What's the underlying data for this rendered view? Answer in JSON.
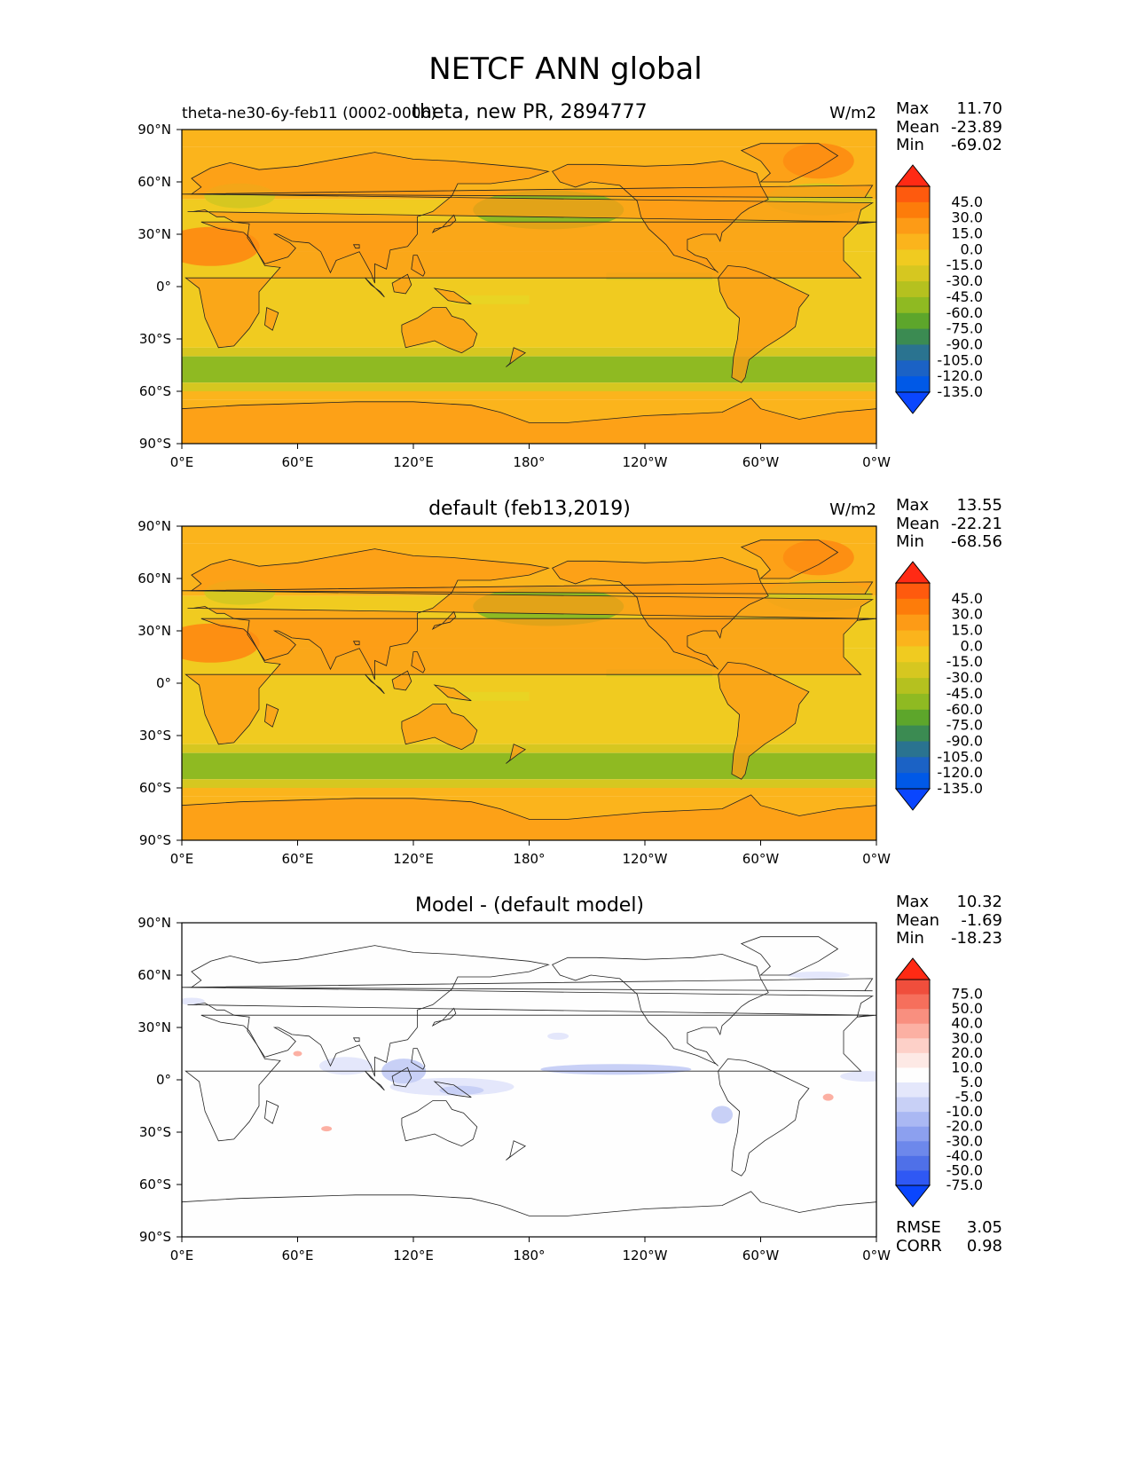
{
  "figure": {
    "title": "NETCF ANN global"
  },
  "axes": {
    "yticks": [
      "90°N",
      "60°N",
      "30°N",
      "0°",
      "30°S",
      "60°S",
      "90°S"
    ],
    "xticks": [
      "0°E",
      "60°E",
      "120°E",
      "180°",
      "120°W",
      "60°W",
      "0°W"
    ]
  },
  "panels": [
    {
      "title": "theta, new PR, 2894777",
      "left_label": "theta-ne30-6y-feb11 (0002-0006)",
      "units": "W/m2",
      "stats": [
        {
          "label": "Max",
          "value": "11.70"
        },
        {
          "label": "Mean",
          "value": "-23.89"
        },
        {
          "label": "Min",
          "value": "-69.02"
        }
      ],
      "colorbar": {
        "labels": [
          "45.0",
          "30.0",
          "15.0",
          "0.0",
          "-15.0",
          "-30.0",
          "-45.0",
          "-60.0",
          "-75.0",
          "-90.0",
          "-105.0",
          "-120.0",
          "-135.0"
        ],
        "colors": [
          "#fc3c13",
          "#fe5a0e",
          "#fd7c0a",
          "#fd9b16",
          "#fbb41c",
          "#f0cb20",
          "#d6c720",
          "#b5c11f",
          "#8fba22",
          "#5da62b",
          "#3b8b52",
          "#2a7390",
          "#1b62c5",
          "#0059e7",
          "#0a46fe"
        ],
        "over_color": "#ff2a14",
        "under_color": "#0a46fe"
      }
    },
    {
      "title": "default (feb13,2019)",
      "units": "W/m2",
      "stats": [
        {
          "label": "Max",
          "value": "13.55"
        },
        {
          "label": "Mean",
          "value": "-22.21"
        },
        {
          "label": "Min",
          "value": "-68.56"
        }
      ],
      "colorbar": {
        "labels": [
          "45.0",
          "30.0",
          "15.0",
          "0.0",
          "-15.0",
          "-30.0",
          "-45.0",
          "-60.0",
          "-75.0",
          "-90.0",
          "-105.0",
          "-120.0",
          "-135.0"
        ],
        "colors": [
          "#fc3c13",
          "#fe5a0e",
          "#fd7c0a",
          "#fd9b16",
          "#fbb41c",
          "#f0cb20",
          "#d6c720",
          "#b5c11f",
          "#8fba22",
          "#5da62b",
          "#3b8b52",
          "#2a7390",
          "#1b62c5",
          "#0059e7",
          "#0a46fe"
        ],
        "over_color": "#ff2a14",
        "under_color": "#0a46fe"
      }
    },
    {
      "title": "Model - (default model)",
      "stats": [
        {
          "label": "Max",
          "value": "10.32"
        },
        {
          "label": "Mean",
          "value": "-1.69"
        },
        {
          "label": "Min",
          "value": "-18.23"
        }
      ],
      "extra_stats": [
        {
          "label": "RMSE",
          "value": "3.05"
        },
        {
          "label": "CORR",
          "value": "0.98"
        }
      ],
      "colorbar": {
        "labels": [
          "75.0",
          "50.0",
          "40.0",
          "30.0",
          "20.0",
          "10.0",
          "5.0",
          "-5.0",
          "-10.0",
          "-20.0",
          "-30.0",
          "-40.0",
          "-50.0",
          "-75.0"
        ],
        "colors": [
          "#ff2a14",
          "#f04e3c",
          "#f66f5c",
          "#f98f7f",
          "#fcb0a3",
          "#fdd0c8",
          "#fde9e5",
          "#fefefe",
          "#e4e7fb",
          "#c8d0f6",
          "#aab8f3",
          "#8ca0ef",
          "#6d88eb",
          "#4f70e8",
          "#2f58f4",
          "#0a46fe"
        ],
        "over_color": "#ff2a14",
        "under_color": "#0a46fe"
      }
    }
  ],
  "chart_data": [
    {
      "type": "heatmap",
      "title": "theta, new PR, 2894777",
      "subtitle": "theta-ne30-6y-feb11 (0002-0006)",
      "units": "W/m2",
      "xlim": [
        0,
        360
      ],
      "ylim": [
        -90,
        90
      ],
      "levels": [
        -135,
        -120,
        -105,
        -90,
        -75,
        -60,
        -45,
        -30,
        -15,
        0,
        15,
        30,
        45
      ],
      "stats": {
        "max": 11.7,
        "mean": -23.89,
        "min": -69.02
      }
    },
    {
      "type": "heatmap",
      "title": "default (feb13,2019)",
      "units": "W/m2",
      "xlim": [
        0,
        360
      ],
      "ylim": [
        -90,
        90
      ],
      "levels": [
        -135,
        -120,
        -105,
        -90,
        -75,
        -60,
        -45,
        -30,
        -15,
        0,
        15,
        30,
        45
      ],
      "stats": {
        "max": 13.55,
        "mean": -22.21,
        "min": -68.56
      }
    },
    {
      "type": "heatmap",
      "title": "Model - (default model)",
      "xlim": [
        0,
        360
      ],
      "ylim": [
        -90,
        90
      ],
      "levels": [
        -75,
        -50,
        -40,
        -30,
        -20,
        -10,
        -5,
        5,
        10,
        20,
        30,
        40,
        50,
        75
      ],
      "stats": {
        "max": 10.32,
        "mean": -1.69,
        "min": -18.23,
        "rmse": 3.05,
        "corr": 0.98
      }
    }
  ]
}
